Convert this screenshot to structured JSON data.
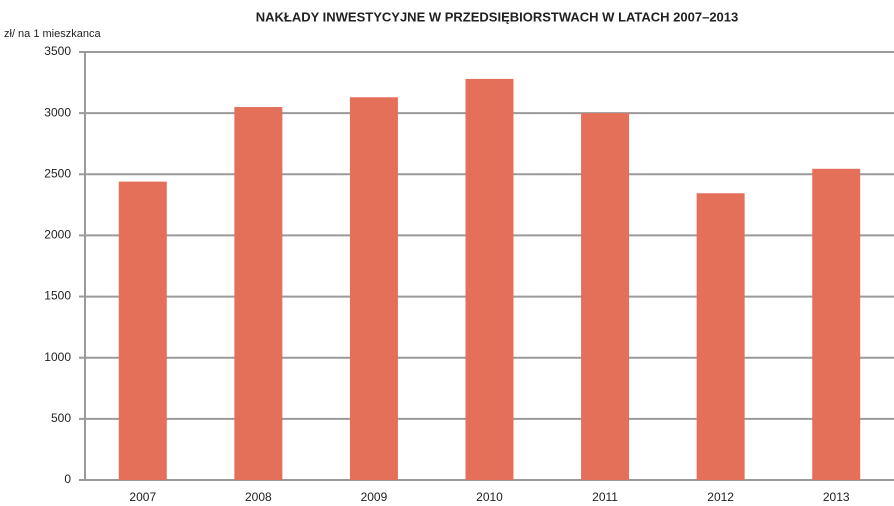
{
  "chart_data": {
    "type": "bar",
    "title": "NAKŁADY INWESTYCYJNE W PRZEDSIĘBIORSTWACH W LATACH 2007–2013",
    "y_axis_label": "zł/ na 1 mieszkanca",
    "categories": [
      "2007",
      "2008",
      "2009",
      "2010",
      "2011",
      "2012",
      "2013"
    ],
    "values": [
      2440,
      3050,
      3130,
      3280,
      3000,
      2345,
      2545
    ],
    "color": "#e5705a",
    "ylim": [
      0,
      3500
    ],
    "yticks": [
      0,
      500,
      1000,
      1500,
      2000,
      2500,
      3000,
      3500
    ],
    "grid": true
  }
}
